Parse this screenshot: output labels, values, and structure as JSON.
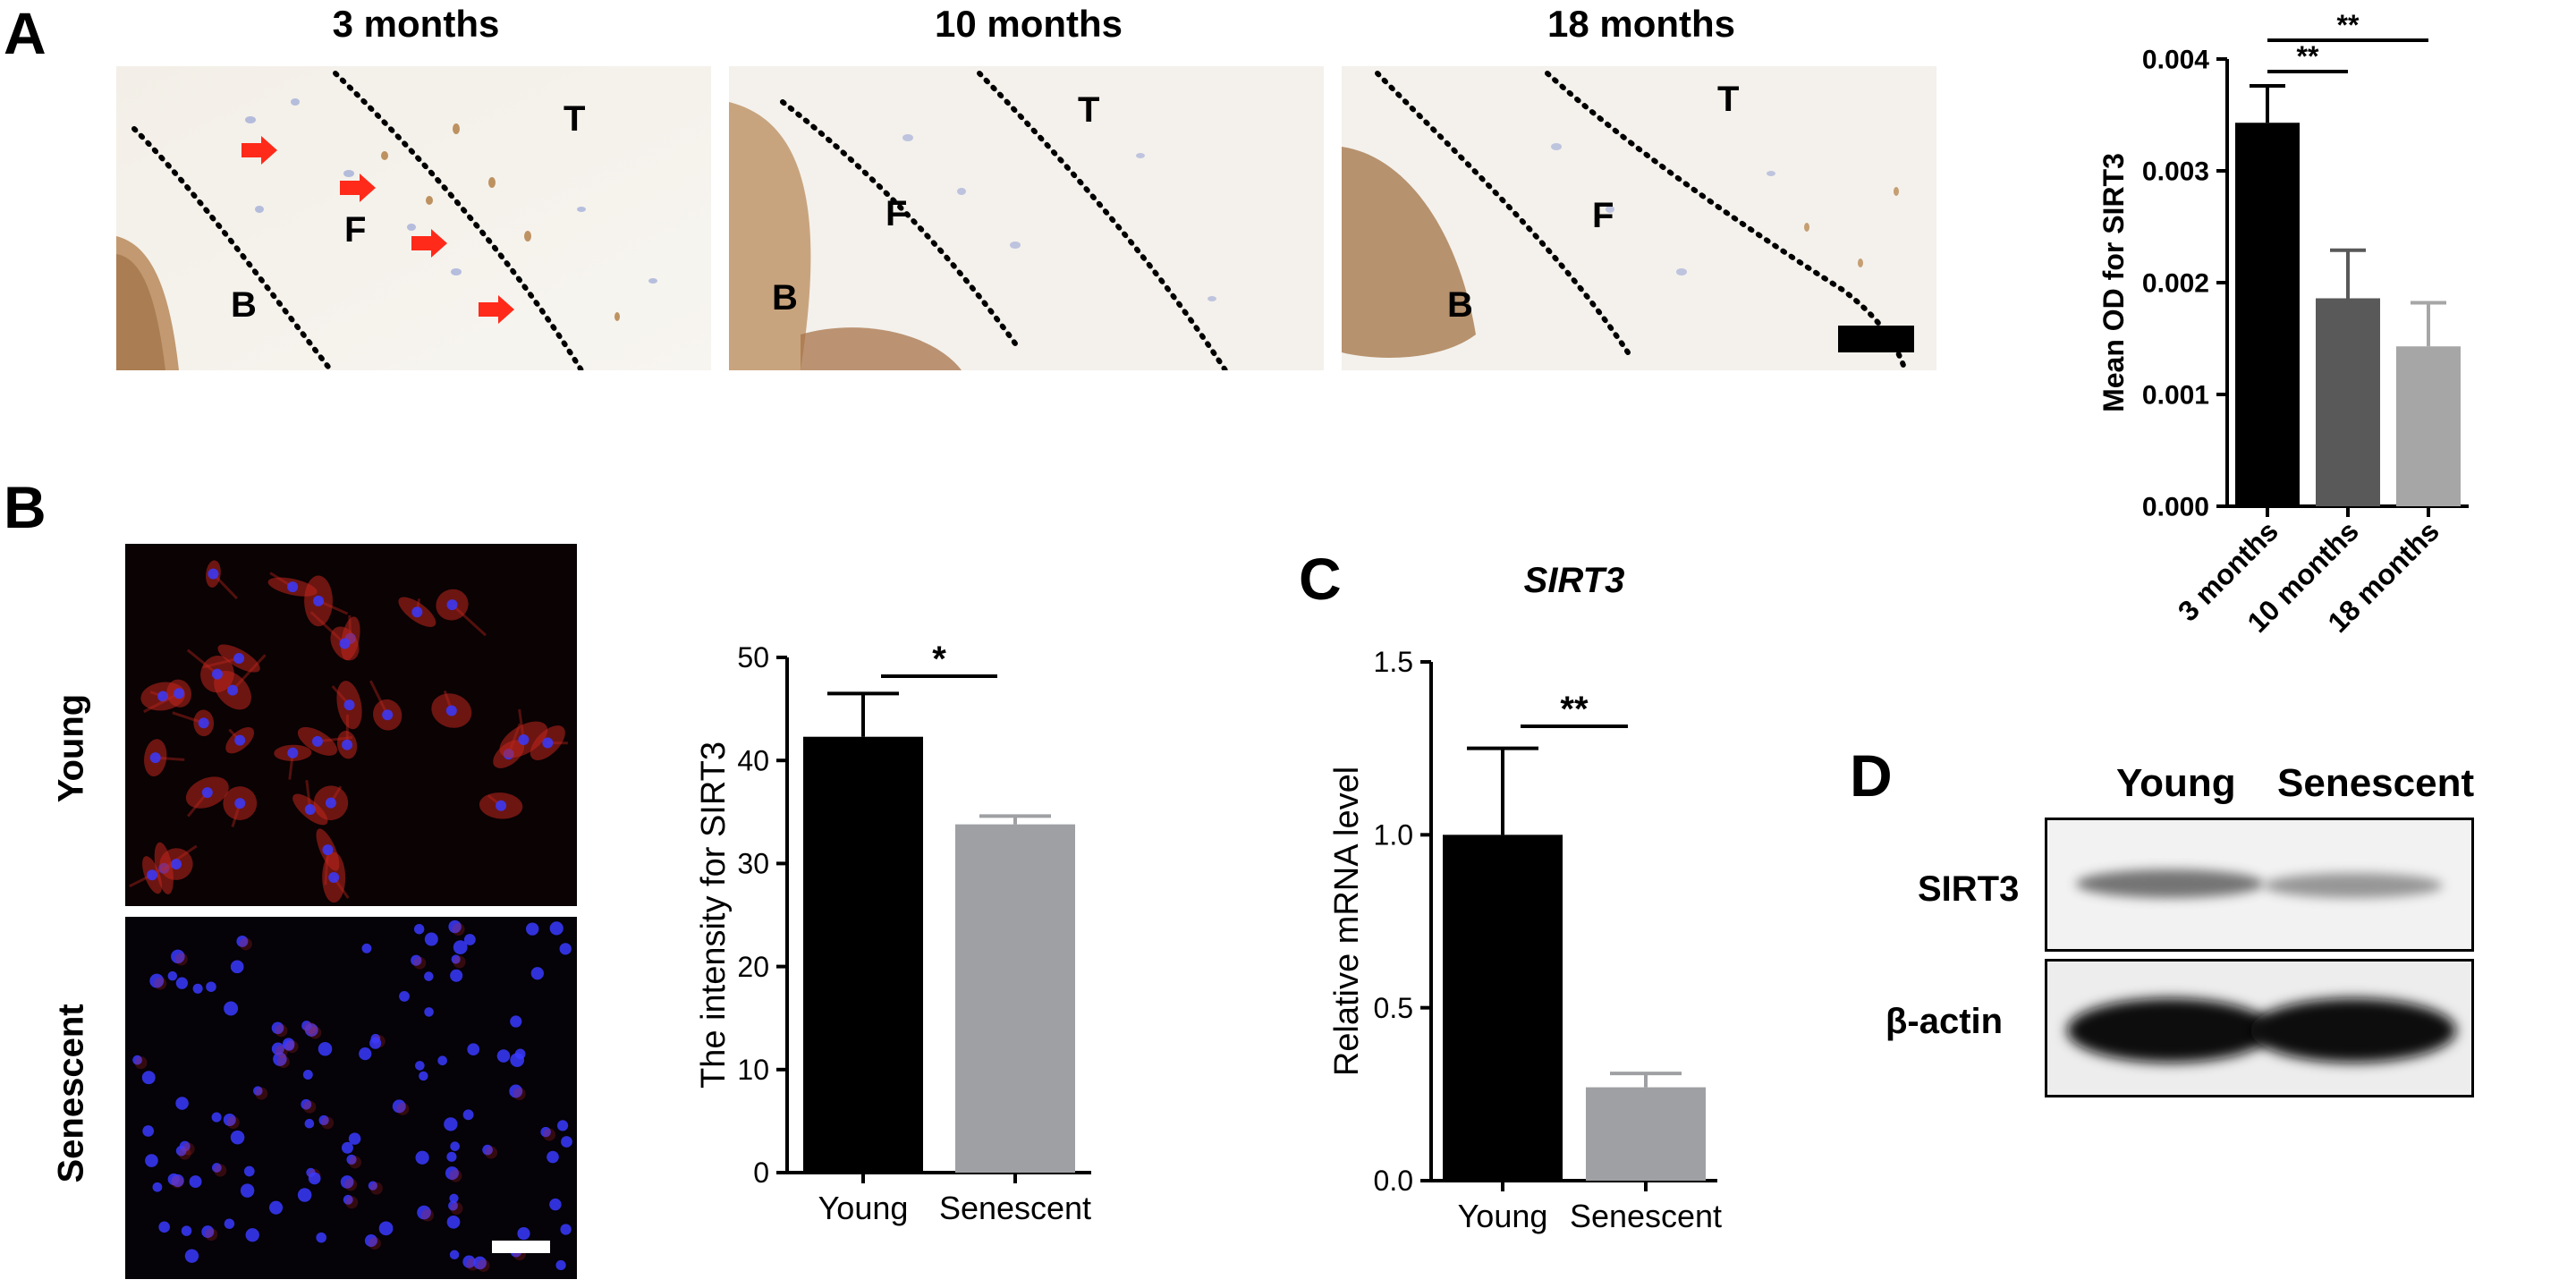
{
  "panels": {
    "A": "A",
    "B": "B",
    "C": "C",
    "D": "D"
  },
  "panelA": {
    "image_titles": [
      "3 months",
      "10 months",
      "18 months"
    ],
    "region_labels": {
      "T": "T",
      "F": "F",
      "B": "B"
    }
  },
  "panelB": {
    "row_labels": [
      "Young",
      "Senescent"
    ]
  },
  "colors": {
    "black_bar": "#000000",
    "dark_gray_bar": "#595959",
    "light_gray_bar": "#a6a6a6",
    "mid_gray_bar": "#9fa0a3",
    "arrow_red": "#ff2a1a",
    "fluor_red": "#c0271e",
    "fluor_blue": "#3a3aff"
  },
  "chart_data": [
    {
      "id": "chartA",
      "type": "bar",
      "title": "",
      "xlabel": "",
      "ylabel": "Mean OD for SIRT3",
      "categories": [
        "3 months",
        "10 months",
        "18 months"
      ],
      "values": [
        0.00343,
        0.00186,
        0.00143
      ],
      "errors": [
        0.00033,
        0.00043,
        0.00039
      ],
      "ylim": [
        0,
        0.004
      ],
      "yticks": [
        "0.000",
        "0.001",
        "0.002",
        "0.003",
        "0.004"
      ],
      "significance": [
        {
          "from": 0,
          "to": 1,
          "label": "**"
        },
        {
          "from": 0,
          "to": 2,
          "label": "**"
        }
      ]
    },
    {
      "id": "chartB",
      "type": "bar",
      "title": "",
      "xlabel": "",
      "ylabel": "The intensity for SIRT3",
      "categories": [
        "Young",
        "Senescent"
      ],
      "values": [
        42.3,
        33.8
      ],
      "errors": [
        4.2,
        0.8
      ],
      "ylim": [
        0,
        50
      ],
      "yticks": [
        "0",
        "10",
        "20",
        "30",
        "40",
        "50"
      ],
      "significance": [
        {
          "from": 0,
          "to": 1,
          "label": "*"
        }
      ]
    },
    {
      "id": "chartC",
      "type": "bar",
      "title": "SIRT3",
      "xlabel": "",
      "ylabel": "Relative mRNA level",
      "categories": [
        "Young",
        "Senescent"
      ],
      "values": [
        1.0,
        0.27
      ],
      "errors": [
        0.25,
        0.04
      ],
      "ylim": [
        0,
        1.5
      ],
      "yticks": [
        "0.0",
        "0.5",
        "1.0",
        "1.5"
      ],
      "significance": [
        {
          "from": 0,
          "to": 1,
          "label": "**"
        }
      ]
    }
  ],
  "panelD": {
    "column_labels": [
      "Young",
      "Senescent"
    ],
    "row_labels": [
      "SIRT3",
      "β-actin"
    ]
  }
}
